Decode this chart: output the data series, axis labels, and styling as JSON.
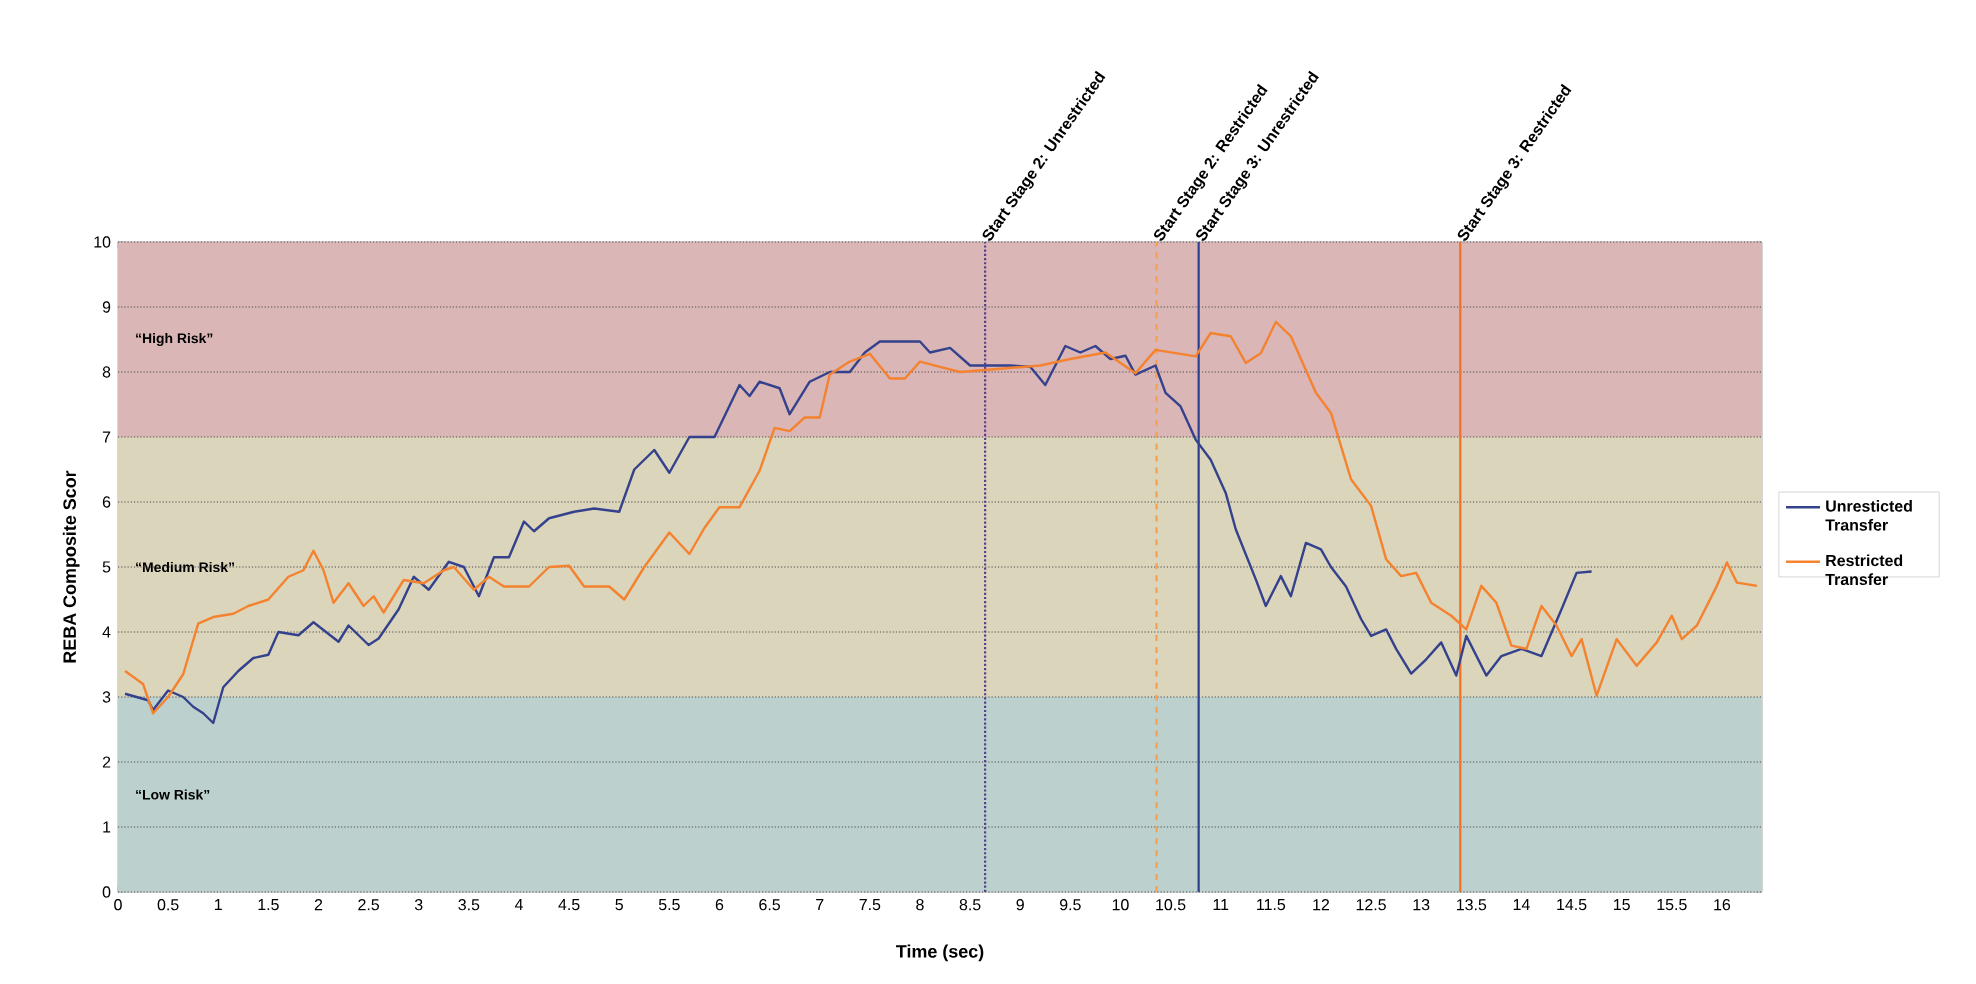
{
  "chart_data": {
    "type": "line",
    "xlabel": "Time (sec)",
    "ylabel": "REBA Composite Scor",
    "xlim": [
      0,
      16.4
    ],
    "ylim": [
      0,
      10
    ],
    "xticks": [
      0,
      0.5,
      1,
      1.5,
      2,
      2.5,
      3,
      3.5,
      4,
      4.5,
      5,
      5.5,
      6,
      6.5,
      7,
      7.5,
      8,
      8.5,
      9,
      9.5,
      10,
      10.5,
      11,
      11.5,
      12,
      12.5,
      13,
      13.5,
      14,
      14.5,
      15,
      15.5,
      16
    ],
    "yticks": [
      0,
      1,
      2,
      3,
      4,
      5,
      6,
      7,
      8,
      9,
      10
    ],
    "grid": "y",
    "legend": "right",
    "marker": "none",
    "bands": [
      {
        "axis": "y",
        "from": 7,
        "to": 10,
        "label": "“High Risk”",
        "color": "#dab6b6"
      },
      {
        "axis": "y",
        "from": 3,
        "to": 7,
        "label": "“Medium Risk”",
        "color": "#dad5bb"
      },
      {
        "axis": "y",
        "from": 0,
        "to": 3,
        "label": "“Low Risk”",
        "color": "#bcd1cd"
      }
    ],
    "ref_lines": [
      {
        "axis": "x",
        "value": 8.65,
        "label": "Start Stage 2: Unrestricted",
        "color": "#5a3f8c",
        "line_style": "dotted"
      },
      {
        "axis": "x",
        "value": 10.36,
        "label": "Start Stage 2: Restricted",
        "color": "#f5a050",
        "line_style": "dashed"
      },
      {
        "axis": "x",
        "value": 10.78,
        "label": "Start Stage 3: Unrestricted",
        "color": "#2e3f8f",
        "line_style": "solid"
      },
      {
        "axis": "x",
        "value": 13.39,
        "label": "Start Stage 3: Restricted",
        "color": "#f36f21",
        "line_style": "solid"
      }
    ],
    "series": [
      {
        "name": "Unresticted Transfer",
        "color": "#34418c",
        "x": [
          0.07,
          0.3,
          0.35,
          0.5,
          0.65,
          0.75,
          0.85,
          0.95,
          1.05,
          1.2,
          1.35,
          1.5,
          1.6,
          1.8,
          1.95,
          2.2,
          2.3,
          2.5,
          2.6,
          2.8,
          2.95,
          3.1,
          3.3,
          3.45,
          3.6,
          3.75,
          3.9,
          4.05,
          4.15,
          4.3,
          4.55,
          4.75,
          5.0,
          5.15,
          5.35,
          5.5,
          5.7,
          5.95,
          6.2,
          6.3,
          6.4,
          6.6,
          6.7,
          6.9,
          7.1,
          7.3,
          7.45,
          7.6,
          8.0,
          8.1,
          8.3,
          8.5,
          8.7,
          8.9,
          9.1,
          9.25,
          9.45,
          9.6,
          9.75,
          9.9,
          10.05,
          10.15,
          10.35,
          10.45,
          10.6,
          10.75,
          10.9,
          11.05,
          11.15,
          11.35,
          11.45,
          11.6,
          11.7,
          11.85,
          12.0,
          12.1,
          12.25,
          12.4,
          12.5,
          12.65,
          12.75,
          12.9,
          13.05,
          13.2,
          13.35,
          13.45,
          13.65,
          13.8,
          14.0,
          14.2,
          14.4,
          14.55,
          14.7
        ],
        "values": [
          3.05,
          2.95,
          2.8,
          3.1,
          3.0,
          2.85,
          2.75,
          2.6,
          3.15,
          3.4,
          3.6,
          3.65,
          4.0,
          3.95,
          4.15,
          3.85,
          4.1,
          3.8,
          3.9,
          4.35,
          4.85,
          4.65,
          5.08,
          5.0,
          4.55,
          5.15,
          5.15,
          5.7,
          5.55,
          5.75,
          5.85,
          5.9,
          5.85,
          6.5,
          6.8,
          6.45,
          7.0,
          7.0,
          7.8,
          7.63,
          7.85,
          7.75,
          7.35,
          7.85,
          8.0,
          8.0,
          8.3,
          8.47,
          8.47,
          8.3,
          8.37,
          8.1,
          8.1,
          8.1,
          8.08,
          7.8,
          8.4,
          8.3,
          8.4,
          8.2,
          8.25,
          7.96,
          8.1,
          7.68,
          7.47,
          6.96,
          6.65,
          6.14,
          5.58,
          4.81,
          4.4,
          4.86,
          4.55,
          5.37,
          5.27,
          5.0,
          4.7,
          4.2,
          3.94,
          4.04,
          3.74,
          3.36,
          3.58,
          3.84,
          3.33,
          3.94,
          3.33,
          3.63,
          3.74,
          3.63,
          4.35,
          4.91,
          4.93
        ]
      },
      {
        "name": "Restricted Transfer",
        "color": "#f5822f",
        "x": [
          0.07,
          0.25,
          0.35,
          0.5,
          0.65,
          0.8,
          0.95,
          1.15,
          1.3,
          1.5,
          1.7,
          1.85,
          1.95,
          2.05,
          2.15,
          2.3,
          2.45,
          2.55,
          2.65,
          2.85,
          3.05,
          3.25,
          3.35,
          3.55,
          3.7,
          3.85,
          4.1,
          4.3,
          4.5,
          4.65,
          4.9,
          5.05,
          5.25,
          5.5,
          5.7,
          5.85,
          6.0,
          6.2,
          6.4,
          6.55,
          6.7,
          6.85,
          7.0,
          7.1,
          7.3,
          7.5,
          7.7,
          7.85,
          8.0,
          8.2,
          8.4,
          8.8,
          9.2,
          9.5,
          9.85,
          10.15,
          10.35,
          10.75,
          10.9,
          11.1,
          11.25,
          11.4,
          11.55,
          11.7,
          11.95,
          12.1,
          12.3,
          12.5,
          12.65,
          12.8,
          12.95,
          13.1,
          13.3,
          13.45,
          13.6,
          13.75,
          13.9,
          14.05,
          14.2,
          14.35,
          14.5,
          14.6,
          14.75,
          14.95,
          15.15,
          15.35,
          15.5,
          15.6,
          15.75,
          15.95,
          16.05,
          16.15,
          16.35
        ],
        "values": [
          3.4,
          3.2,
          2.75,
          3.0,
          3.35,
          4.13,
          4.23,
          4.28,
          4.4,
          4.5,
          4.85,
          4.95,
          5.25,
          4.95,
          4.45,
          4.75,
          4.4,
          4.55,
          4.3,
          4.8,
          4.75,
          4.95,
          5.0,
          4.65,
          4.85,
          4.7,
          4.7,
          5.0,
          5.02,
          4.7,
          4.7,
          4.5,
          5.0,
          5.53,
          5.2,
          5.6,
          5.92,
          5.92,
          6.48,
          7.14,
          7.09,
          7.3,
          7.3,
          7.96,
          8.16,
          8.28,
          7.9,
          7.9,
          8.16,
          8.08,
          8.0,
          8.05,
          8.1,
          8.2,
          8.3,
          7.98,
          8.34,
          8.24,
          8.6,
          8.55,
          8.14,
          8.29,
          8.77,
          8.55,
          7.68,
          7.37,
          6.35,
          5.94,
          5.12,
          4.86,
          4.91,
          4.45,
          4.25,
          4.04,
          4.71,
          4.45,
          3.79,
          3.74,
          4.4,
          4.1,
          3.63,
          3.89,
          3.02,
          3.89,
          3.48,
          3.84,
          4.25,
          3.89,
          4.1,
          4.71,
          5.07,
          4.76,
          4.71
        ]
      }
    ]
  }
}
